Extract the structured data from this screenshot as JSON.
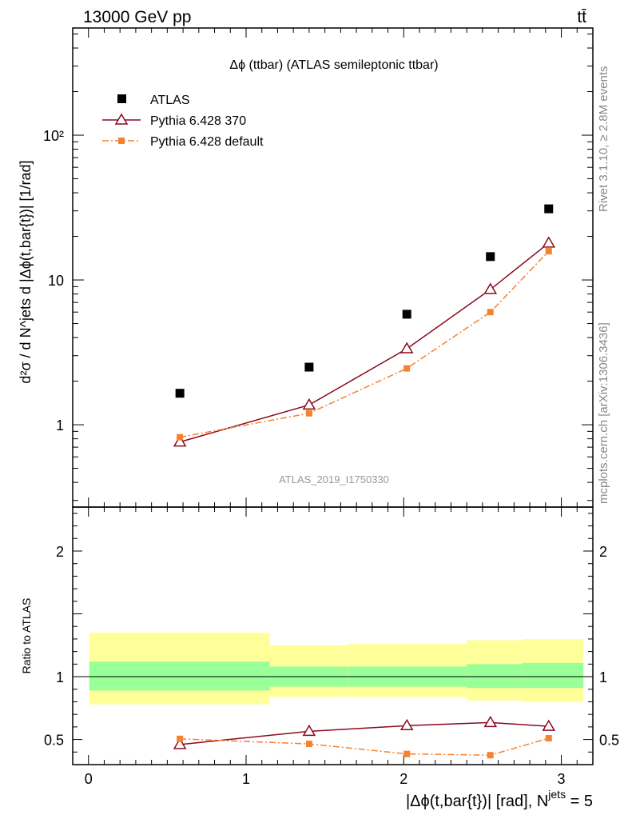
{
  "header": {
    "left": "13000 GeV pp",
    "right": "tt̄"
  },
  "side": {
    "rivet": "Rivet 3.1.10, ≥ 2.8M events",
    "mcplots": "mcplots.cern.ch [arXiv:1306.3436]"
  },
  "chart_data": {
    "type": "scatter",
    "title": "Δϕ (ttbar) (ATLAS semileptonic ttbar)",
    "analysis_label": "ATLAS_2019_I1750330",
    "xlabel": "|Δϕ(t,bar{t})| [rad], N",
    "xlabel_sup": "jets",
    "xlabel_suffix": " = 5",
    "ylabel": "d²σ / d N^jets d |Δϕ(t,bar{t})| [1/rad]",
    "ratio_ylabel": "Ratio to ATLAS",
    "xlim": [
      -0.1,
      3.2
    ],
    "ylim": [
      0.27,
      550
    ],
    "yscale": "log",
    "ratio_ylim": [
      0.3,
      2.35
    ],
    "x_ticks": [
      "0",
      "1",
      "2",
      "3"
    ],
    "y_ticks": [
      "1",
      "10",
      "10²"
    ],
    "ratio_ticks": [
      "0.5",
      "1",
      "2"
    ],
    "x": [
      0.58,
      1.4,
      2.02,
      2.55,
      2.92
    ],
    "series": [
      {
        "name": "ATLAS",
        "values": [
          1.65,
          2.5,
          5.8,
          14.5,
          31
        ],
        "color": "#000000",
        "marker": "filled-square"
      },
      {
        "name": "Pythia 6.428 370",
        "values": [
          0.76,
          1.37,
          3.35,
          8.6,
          18
        ],
        "ratio": [
          0.46,
          0.565,
          0.61,
          0.635,
          0.605
        ],
        "color": "#8b0a20",
        "marker": "open-triangle",
        "line": "solid"
      },
      {
        "name": "Pythia 6.428 default",
        "values": [
          0.82,
          1.2,
          2.45,
          6.0,
          15.8
        ],
        "ratio": [
          0.505,
          0.465,
          0.385,
          0.375,
          0.51
        ],
        "color": "#f58231",
        "marker": "filled-square",
        "line": "dash-dot"
      }
    ],
    "bands": [
      {
        "x": [
          0,
          1.15
        ],
        "inner": [
          0.89,
          1.12
        ],
        "outer": [
          0.78,
          1.35
        ]
      },
      {
        "x": [
          1.15,
          1.65
        ],
        "inner": [
          0.92,
          1.08
        ],
        "outer": [
          0.84,
          1.25
        ]
      },
      {
        "x": [
          1.65,
          2.4
        ],
        "inner": [
          0.92,
          1.08
        ],
        "outer": [
          0.84,
          1.26
        ]
      },
      {
        "x": [
          2.4,
          2.75
        ],
        "inner": [
          0.91,
          1.1
        ],
        "outer": [
          0.81,
          1.29
        ]
      },
      {
        "x": [
          2.75,
          3.14
        ],
        "inner": [
          0.91,
          1.11
        ],
        "outer": [
          0.8,
          1.3
        ]
      }
    ],
    "band_colors": {
      "outer": "#ffff99",
      "inner": "#99ff99"
    },
    "legend_position": "top-left"
  }
}
